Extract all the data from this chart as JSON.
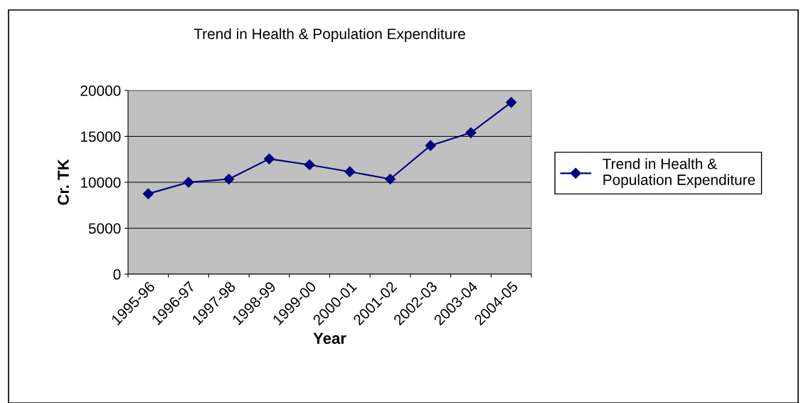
{
  "chart_data": {
    "type": "line",
    "title": "Trend in Health & Population Expenditure",
    "xlabel": "Year",
    "ylabel": "Cr. TK",
    "categories": [
      "1995-96",
      "1996-97",
      "1997-98",
      "1998-99",
      "1999-00",
      "2000-01",
      "2001-02",
      "2002-03",
      "2003-04",
      "2004-05"
    ],
    "series": [
      {
        "name": "Trend in Health & Population Expenditure",
        "color": "#000080",
        "values": [
          8750,
          10000,
          10350,
          12550,
          11900,
          11150,
          10350,
          14000,
          15400,
          18700
        ]
      }
    ],
    "ylim": [
      0,
      20000
    ],
    "yticks": [
      0,
      5000,
      10000,
      15000,
      20000
    ],
    "grid": "y",
    "legend": "right",
    "marker": "diamond",
    "line_style": "solid"
  }
}
